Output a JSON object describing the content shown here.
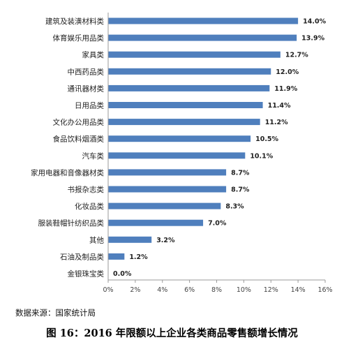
{
  "chart_data": {
    "type": "bar",
    "orientation": "horizontal",
    "categories": [
      "建筑及装潢材料类",
      "体育娱乐用品类",
      "家具类",
      "中西药品类",
      "通讯器材类",
      "日用品类",
      "文化办公用品类",
      "食品饮料烟酒类",
      "汽车类",
      "家用电器和音像器材类",
      "书报杂志类",
      "化妆品类",
      "服装鞋帽针纺织品类",
      "其他",
      "石油及制品类",
      "金银珠宝类"
    ],
    "values": [
      14.0,
      13.9,
      12.7,
      12.0,
      11.9,
      11.4,
      11.2,
      10.5,
      10.1,
      8.7,
      8.7,
      8.3,
      7.0,
      3.2,
      1.2,
      0.0
    ],
    "value_labels": [
      "14.0%",
      "13.9%",
      "12.7%",
      "12.0%",
      "11.9%",
      "11.4%",
      "11.2%",
      "10.5%",
      "10.1%",
      "8.7%",
      "8.7%",
      "8.3%",
      "7.0%",
      "3.2%",
      "1.2%",
      "0.0%"
    ],
    "xlim": [
      0,
      16
    ],
    "xticks": [
      0,
      2,
      4,
      6,
      8,
      10,
      12,
      14,
      16
    ],
    "xtick_labels": [
      "0%",
      "2%",
      "4%",
      "6%",
      "8%",
      "10%",
      "12%",
      "14%",
      "16%"
    ],
    "bar_color": "#4f7fbd",
    "grid": false,
    "legend": "none"
  },
  "source_note": "数据来源：国家统计局",
  "caption": "图 16：2016 年限额以上企业各类商品零售额增长情况"
}
